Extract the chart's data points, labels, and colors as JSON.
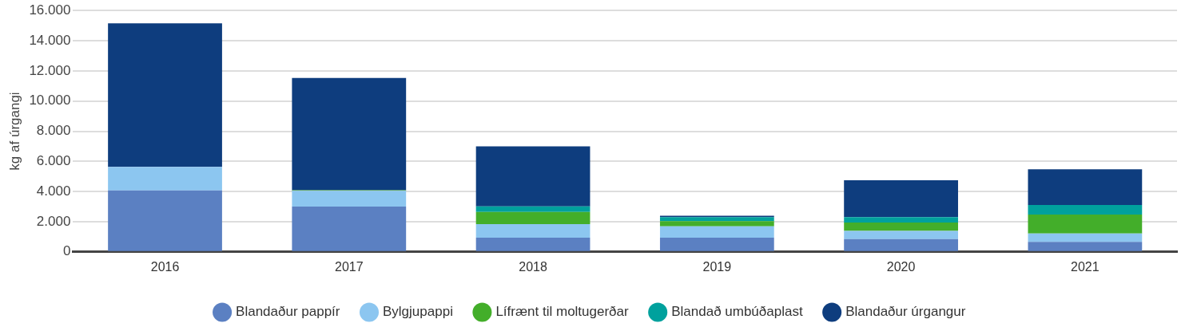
{
  "chart_data": {
    "type": "bar",
    "stacked": true,
    "ylabel": "kg af úrgangi",
    "categories": [
      "2016",
      "2017",
      "2018",
      "2019",
      "2020",
      "2021"
    ],
    "series": [
      {
        "name": "Blandaður pappír",
        "color": "#5b80c2",
        "values": [
          4080,
          3000,
          940,
          940,
          850,
          670
        ]
      },
      {
        "name": "Bylgjupappi",
        "color": "#8cc6f0",
        "values": [
          1560,
          1050,
          900,
          750,
          540,
          550
        ]
      },
      {
        "name": "Lífrænt til moltugerðar",
        "color": "#43ae2a",
        "values": [
          0,
          40,
          800,
          350,
          550,
          1260
        ]
      },
      {
        "name": "Blandað umbúðaplast",
        "color": "#00a19d",
        "values": [
          0,
          0,
          370,
          260,
          360,
          630
        ]
      },
      {
        "name": "Blandaður úrgangur",
        "color": "#0e3d7e",
        "values": [
          9510,
          7440,
          3990,
          90,
          2450,
          2360
        ]
      }
    ],
    "ylim": [
      0,
      16000
    ],
    "yticks": [
      {
        "value": 0,
        "label": "0"
      },
      {
        "value": 2000,
        "label": "2.000"
      },
      {
        "value": 4000,
        "label": "4.000"
      },
      {
        "value": 6000,
        "label": "6.000"
      },
      {
        "value": 8000,
        "label": "8.000"
      },
      {
        "value": 10000,
        "label": "10.000"
      },
      {
        "value": 12000,
        "label": "12.000"
      },
      {
        "value": 14000,
        "label": "14.000"
      },
      {
        "value": 16000,
        "label": "16.000"
      }
    ],
    "grid": "y",
    "legend": "bottom",
    "marker": "circle"
  }
}
